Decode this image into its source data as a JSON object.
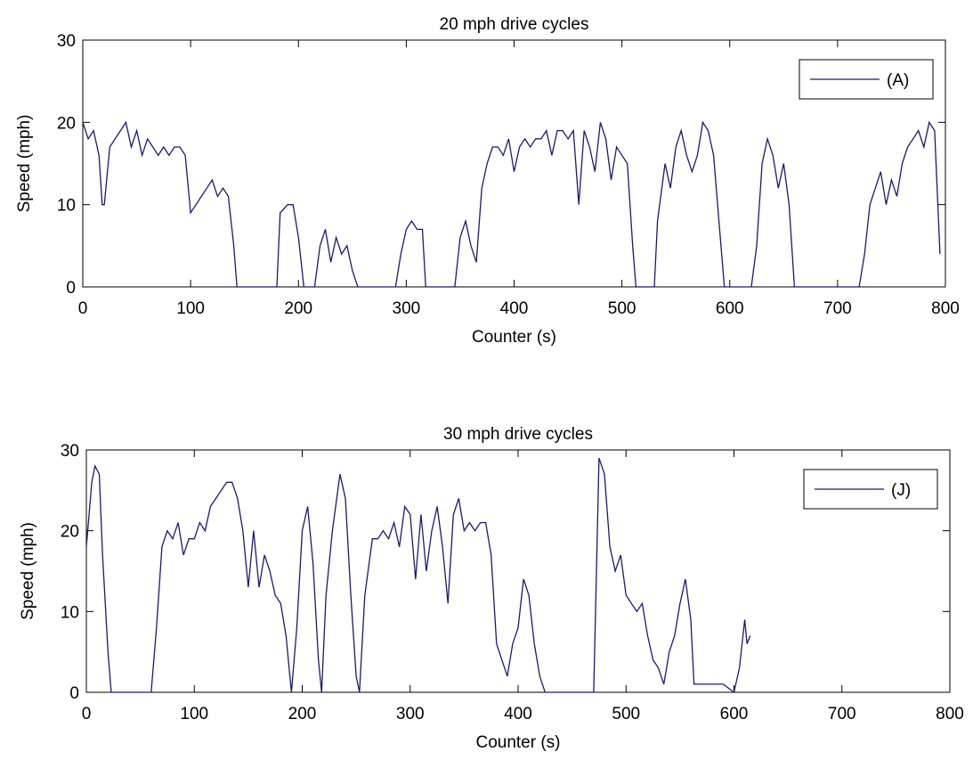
{
  "chart_data": [
    {
      "type": "line",
      "title": "20 mph drive cycles",
      "xlabel": "Counter (s)",
      "ylabel": "Speed (mph)",
      "xlim": [
        0,
        800
      ],
      "ylim": [
        0,
        30
      ],
      "xticks": [
        0,
        100,
        200,
        300,
        400,
        500,
        600,
        700,
        800
      ],
      "yticks": [
        0,
        10,
        20,
        30
      ],
      "legend": "upper right",
      "series": [
        {
          "name": "(A)",
          "color": "#1a1a6e",
          "x": [
            0,
            5,
            10,
            15,
            18,
            20,
            25,
            30,
            35,
            40,
            45,
            50,
            55,
            60,
            65,
            70,
            75,
            80,
            85,
            90,
            95,
            100,
            105,
            110,
            115,
            120,
            125,
            130,
            135,
            140,
            143,
            180,
            183,
            190,
            195,
            200,
            205,
            215,
            220,
            225,
            230,
            235,
            240,
            245,
            250,
            255,
            290,
            295,
            300,
            305,
            310,
            315,
            318,
            345,
            350,
            355,
            360,
            365,
            370,
            375,
            380,
            385,
            390,
            395,
            400,
            405,
            410,
            415,
            420,
            425,
            430,
            435,
            440,
            445,
            450,
            455,
            460,
            465,
            470,
            475,
            480,
            485,
            490,
            495,
            500,
            505,
            510,
            513,
            530,
            533,
            540,
            545,
            550,
            555,
            560,
            565,
            570,
            575,
            580,
            585,
            590,
            595,
            620,
            625,
            630,
            635,
            640,
            645,
            650,
            655,
            660,
            720,
            725,
            730,
            735,
            740,
            745,
            750,
            755,
            760,
            765,
            770,
            775,
            780,
            785,
            790,
            795
          ],
          "values": [
            20,
            18,
            19,
            16,
            10,
            10,
            17,
            18,
            19,
            20,
            17,
            19,
            16,
            18,
            17,
            16,
            17,
            16,
            17,
            17,
            16,
            9,
            10,
            11,
            12,
            13,
            11,
            12,
            11,
            5,
            0,
            0,
            9,
            10,
            10,
            6,
            0,
            0,
            5,
            7,
            3,
            6,
            4,
            5,
            2,
            0,
            0,
            4,
            7,
            8,
            7,
            7,
            0,
            0,
            6,
            8,
            5,
            3,
            12,
            15,
            17,
            17,
            16,
            18,
            14,
            17,
            18,
            17,
            18,
            18,
            19,
            16,
            19,
            19,
            18,
            19,
            10,
            19,
            17,
            14,
            20,
            18,
            13,
            17,
            16,
            15,
            5,
            0,
            0,
            8,
            15,
            12,
            17,
            19,
            16,
            14,
            16,
            20,
            19,
            16,
            8,
            0,
            0,
            5,
            15,
            18,
            16,
            12,
            15,
            10,
            0,
            0,
            4,
            10,
            12,
            14,
            10,
            13,
            11,
            15,
            17,
            18,
            19,
            17,
            20,
            19,
            4
          ]
        }
      ]
    },
    {
      "type": "line",
      "title": "30 mph drive cycles",
      "xlabel": "Counter (s)",
      "ylabel": "Speed (mph)",
      "xlim": [
        0,
        800
      ],
      "ylim": [
        0,
        30
      ],
      "xticks": [
        0,
        100,
        200,
        300,
        400,
        500,
        600,
        700,
        800
      ],
      "yticks": [
        0,
        10,
        20,
        30
      ],
      "legend": "upper right",
      "series": [
        {
          "name": "(J)",
          "color": "#1a1a6e",
          "x": [
            0,
            5,
            8,
            12,
            15,
            20,
            23,
            60,
            65,
            70,
            75,
            80,
            85,
            90,
            95,
            100,
            105,
            110,
            115,
            120,
            125,
            130,
            135,
            140,
            145,
            150,
            155,
            160,
            165,
            170,
            175,
            180,
            185,
            190,
            195,
            200,
            205,
            210,
            215,
            218,
            222,
            228,
            235,
            240,
            245,
            250,
            253,
            258,
            265,
            270,
            275,
            280,
            285,
            290,
            295,
            300,
            305,
            310,
            315,
            320,
            325,
            330,
            335,
            340,
            345,
            350,
            355,
            360,
            365,
            370,
            375,
            380,
            385,
            390,
            395,
            400,
            405,
            410,
            415,
            420,
            425,
            470,
            475,
            480,
            485,
            490,
            495,
            500,
            505,
            510,
            515,
            520,
            525,
            530,
            535,
            540,
            545,
            550,
            555,
            560,
            563,
            570,
            580,
            590,
            600,
            605,
            610,
            612,
            615
          ],
          "values": [
            18,
            26,
            28,
            27,
            17,
            5,
            0,
            0,
            8,
            18,
            20,
            19,
            21,
            17,
            19,
            19,
            21,
            20,
            23,
            24,
            25,
            26,
            26,
            24,
            20,
            13,
            20,
            13,
            17,
            15,
            12,
            11,
            7,
            0,
            8,
            20,
            23,
            16,
            4,
            0,
            12,
            20,
            27,
            24,
            12,
            2,
            0,
            12,
            19,
            19,
            20,
            19,
            21,
            18,
            23,
            22,
            14,
            22,
            15,
            20,
            23,
            18,
            11,
            22,
            24,
            20,
            21,
            20,
            21,
            21,
            17,
            6,
            4,
            2,
            6,
            8,
            14,
            12,
            6,
            2,
            0,
            0,
            29,
            27,
            18,
            15,
            17,
            12,
            11,
            10,
            11,
            7,
            4,
            3,
            1,
            5,
            7,
            11,
            14,
            9,
            1,
            1,
            1,
            1,
            0,
            3,
            9,
            6,
            7
          ]
        }
      ]
    }
  ]
}
